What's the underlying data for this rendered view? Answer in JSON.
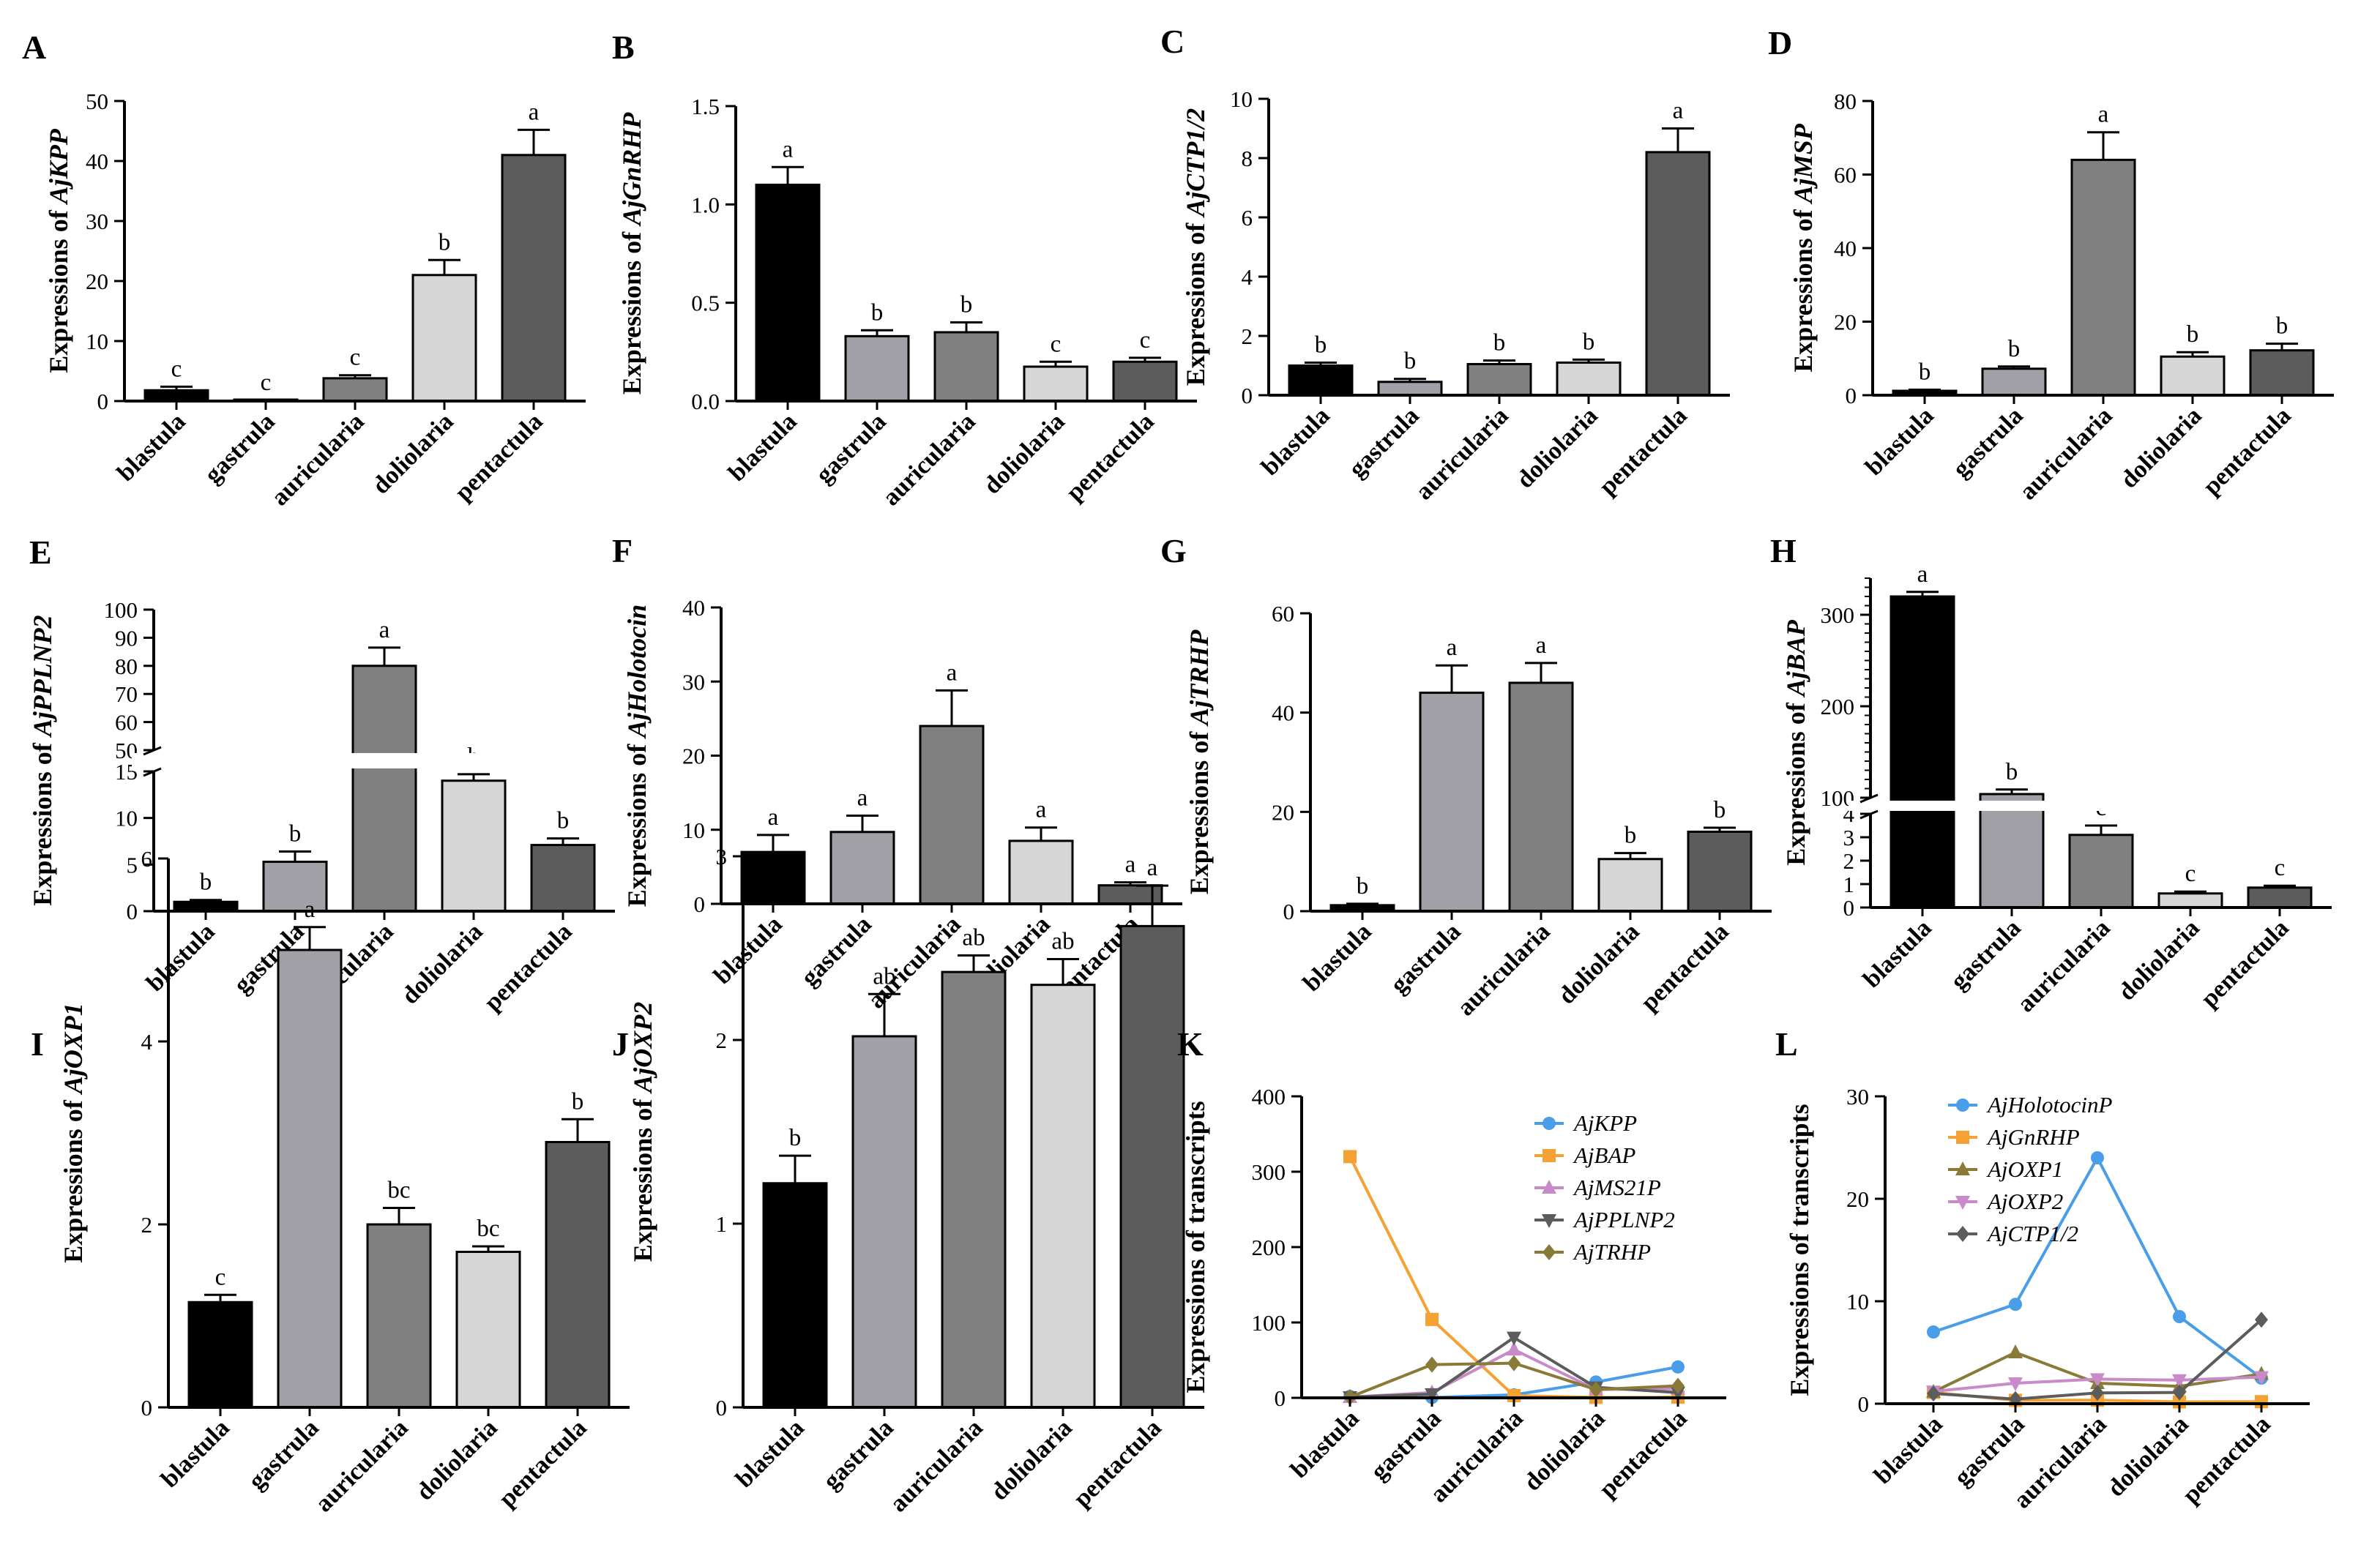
{
  "figure": {
    "categories": [
      "blastula",
      "gastrula",
      "auricularia",
      "doliolaria",
      "pentactula"
    ],
    "bar_colors": [
      "#000000",
      "#a0a0a6",
      "#808080",
      "#d6d6d6",
      "#5c5c5c"
    ]
  },
  "chart_data": [
    {
      "id": "A",
      "type": "bar",
      "panel_label": "A",
      "ylabel_prefix": "Expressions of ",
      "gene": "AjKPP",
      "ylim": [
        0,
        50
      ],
      "yticks": [
        0,
        10,
        20,
        30,
        40,
        50
      ],
      "values": [
        1.8,
        0.1,
        3.8,
        21,
        41
      ],
      "errors": [
        0.6,
        0.05,
        0.5,
        2.5,
        4.2
      ],
      "letters": [
        "c",
        "c",
        "c",
        "b",
        "a"
      ]
    },
    {
      "id": "B",
      "type": "bar",
      "panel_label": "B",
      "ylabel_prefix": "Expressions of ",
      "gene": "AjGnRHP",
      "ylim": [
        0,
        1.5
      ],
      "yticks": [
        "0.0",
        "0.5",
        "1.0",
        "1.5"
      ],
      "values": [
        1.1,
        0.33,
        0.35,
        0.175,
        0.2
      ],
      "errors": [
        0.09,
        0.03,
        0.05,
        0.025,
        0.02
      ],
      "letters": [
        "a",
        "b",
        "b",
        "c",
        "c"
      ]
    },
    {
      "id": "C",
      "type": "bar",
      "panel_label": "C",
      "ylabel_prefix": "Expressions of ",
      "gene": "AjCTP1/2",
      "ylim": [
        0,
        10
      ],
      "yticks": [
        0,
        2,
        4,
        6,
        8,
        10
      ],
      "values": [
        1.0,
        0.45,
        1.05,
        1.1,
        8.2
      ],
      "errors": [
        0.1,
        0.1,
        0.12,
        0.1,
        0.8
      ],
      "letters": [
        "b",
        "b",
        "b",
        "b",
        "a"
      ]
    },
    {
      "id": "D",
      "type": "bar",
      "panel_label": "D",
      "ylabel_prefix": "Expressions of ",
      "gene": "AjMSP",
      "ylim": [
        0,
        80
      ],
      "yticks": [
        0,
        20,
        40,
        60,
        80
      ],
      "values": [
        1.2,
        7.2,
        64,
        10.5,
        12.2
      ],
      "errors": [
        0.3,
        0.6,
        7.5,
        1.2,
        1.8
      ],
      "letters": [
        "b",
        "b",
        "a",
        "b",
        "b"
      ]
    },
    {
      "id": "E",
      "type": "bar_broken",
      "panel_label": "E",
      "ylabel_prefix": "Expressions of ",
      "gene": "AjPPLNP2",
      "lower_range": [
        0,
        15
      ],
      "lower_ticks": [
        0,
        5,
        10,
        15
      ],
      "upper_range": [
        50,
        100
      ],
      "upper_ticks": [
        50,
        60,
        70,
        80,
        90,
        100
      ],
      "values": [
        1,
        5.3,
        80,
        14,
        7.1
      ],
      "errors": [
        0.2,
        1.1,
        6.5,
        0.7,
        0.7
      ],
      "letters": [
        "b",
        "b",
        "a",
        "b",
        "b"
      ]
    },
    {
      "id": "F",
      "type": "bar",
      "panel_label": "F",
      "ylabel_prefix": "Expressions of ",
      "gene": "AjHolotocin",
      "ylim": [
        0,
        40
      ],
      "yticks": [
        0,
        10,
        20,
        30,
        40
      ],
      "values": [
        7,
        9.7,
        24,
        8.5,
        2.5
      ],
      "errors": [
        2.3,
        2.2,
        4.8,
        1.8,
        0.4
      ],
      "letters": [
        "a",
        "a",
        "a",
        "a",
        "a"
      ]
    },
    {
      "id": "G",
      "type": "bar",
      "panel_label": "G",
      "ylabel_prefix": "Expressions of ",
      "gene": "AjTRHP",
      "ylim": [
        0,
        60
      ],
      "yticks": [
        0,
        20,
        40,
        60
      ],
      "values": [
        1.2,
        44,
        46,
        10.5,
        16
      ],
      "errors": [
        0.3,
        5.5,
        4,
        1.2,
        0.8
      ],
      "letters": [
        "b",
        "a",
        "a",
        "b",
        "b"
      ]
    },
    {
      "id": "H",
      "type": "bar_broken",
      "panel_label": "H",
      "ylabel_prefix": "Expressions of ",
      "gene": "AjBAP",
      "lower_range": [
        0,
        4
      ],
      "lower_ticks": [
        0,
        1,
        2,
        3,
        4
      ],
      "upper_range": [
        100,
        340
      ],
      "upper_ticks": [
        100,
        200,
        300
      ],
      "values": [
        320,
        104,
        3.1,
        0.6,
        0.85
      ],
      "errors": [
        5,
        5,
        0.4,
        0.08,
        0.08
      ],
      "letters": [
        "a",
        "b",
        "c",
        "c",
        "c"
      ]
    },
    {
      "id": "I",
      "type": "bar",
      "panel_label": "I",
      "ylabel_prefix": "Expressions of ",
      "gene": "AjOXP1",
      "ylim": [
        0,
        6
      ],
      "yticks": [
        0,
        2,
        4,
        6
      ],
      "values": [
        1.15,
        5,
        2,
        1.7,
        2.9
      ],
      "errors": [
        0.08,
        0.25,
        0.18,
        0.06,
        0.25
      ],
      "letters": [
        "c",
        "a",
        "bc",
        "bc",
        "b"
      ]
    },
    {
      "id": "J",
      "type": "bar",
      "panel_label": "J",
      "ylabel_prefix": "Expressions of ",
      "gene": "AjOXP2",
      "ylim": [
        0,
        3
      ],
      "yticks": [
        0,
        1,
        2,
        3
      ],
      "values": [
        1.22,
        2.02,
        2.37,
        2.3,
        2.62
      ],
      "errors": [
        0.15,
        0.23,
        0.09,
        0.14,
        0.22
      ],
      "letters": [
        "b",
        "ab",
        "ab",
        "ab",
        "a"
      ]
    },
    {
      "id": "K",
      "type": "line",
      "panel_label": "K",
      "ylabel": "Expressions of transcripts",
      "ylim": [
        0,
        400
      ],
      "yticks": [
        0,
        100,
        200,
        300,
        400
      ],
      "series": [
        {
          "name": "AjKPP",
          "color": "#4a9de8",
          "marker": "circle",
          "values": [
            2,
            0.5,
            4,
            21,
            41
          ]
        },
        {
          "name": "AjBAP",
          "color": "#f5a133",
          "marker": "square",
          "values": [
            320,
            104,
            3,
            0.6,
            0.9
          ]
        },
        {
          "name": "AjMS21P",
          "color": "#c88ac8",
          "marker": "triangle-up",
          "values": [
            1,
            7,
            64,
            11,
            12
          ]
        },
        {
          "name": "AjPPLNP2",
          "color": "#5c5c5c",
          "marker": "triangle-down",
          "values": [
            1,
            5,
            80,
            14,
            7
          ]
        },
        {
          "name": "AjTRHP",
          "color": "#8a7a38",
          "marker": "diamond",
          "values": [
            1,
            44,
            46,
            11,
            16
          ]
        }
      ]
    },
    {
      "id": "L",
      "type": "line",
      "panel_label": "L",
      "ylabel": "Expressions of transcripts",
      "ylim": [
        0,
        30
      ],
      "yticks": [
        0,
        10,
        20,
        30
      ],
      "series": [
        {
          "name": "AjHolotocinP",
          "color": "#4a9de8",
          "marker": "circle",
          "values": [
            7,
            9.7,
            24,
            8.5,
            2.5
          ]
        },
        {
          "name": "AjGnRHP",
          "color": "#f5a133",
          "marker": "square",
          "values": [
            1.1,
            0.33,
            0.35,
            0.18,
            0.2
          ]
        },
        {
          "name": "AjOXP1",
          "color": "#8a7a38",
          "marker": "triangle-up",
          "values": [
            1.15,
            5,
            2,
            1.7,
            2.9
          ]
        },
        {
          "name": "AjOXP2",
          "color": "#c88ac8",
          "marker": "triangle-down",
          "values": [
            1.2,
            2,
            2.4,
            2.3,
            2.6
          ]
        },
        {
          "name": "AjCTP1/2",
          "color": "#5c5c5c",
          "marker": "diamond",
          "values": [
            1,
            0.45,
            1.05,
            1.1,
            8.2
          ]
        }
      ]
    }
  ]
}
